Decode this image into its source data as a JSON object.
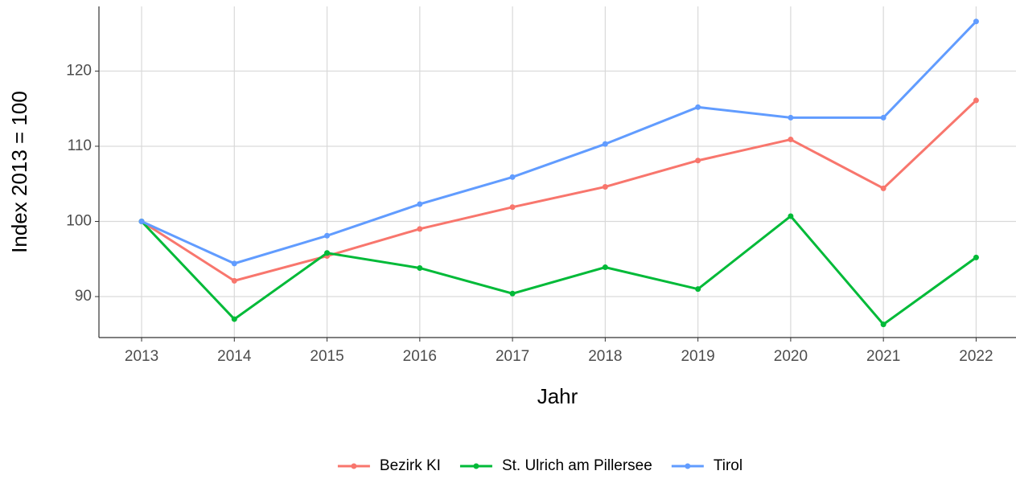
{
  "chart_data": {
    "type": "line",
    "x_label": "Jahr",
    "y_label": "Index  2013  = 100",
    "x": [
      2013,
      2014,
      2015,
      2016,
      2017,
      2018,
      2019,
      2020,
      2021,
      2022
    ],
    "series": [
      {
        "name": "Bezirk KI",
        "color": "#F8766D",
        "values": [
          100,
          92.1,
          95.4,
          99.0,
          101.9,
          104.6,
          108.1,
          110.9,
          104.4,
          116.1
        ]
      },
      {
        "name": "St. Ulrich am Pillersee",
        "color": "#00BA38",
        "values": [
          100,
          87.0,
          95.8,
          93.8,
          90.4,
          93.9,
          91.0,
          100.7,
          86.3,
          95.2
        ]
      },
      {
        "name": "Tirol",
        "color": "#619CFF",
        "values": [
          100,
          94.4,
          98.1,
          102.3,
          105.9,
          110.3,
          115.2,
          113.8,
          113.8,
          126.6
        ]
      }
    ],
    "xlim": [
      2012.54,
      2022.43
    ],
    "xticks": [
      2013,
      2014,
      2015,
      2016,
      2017,
      2018,
      2019,
      2020,
      2021,
      2022
    ],
    "ylim": [
      84.55,
      128.6
    ],
    "yticks": [
      90,
      100,
      110,
      120
    ],
    "grid": true,
    "legend": "bottom"
  }
}
